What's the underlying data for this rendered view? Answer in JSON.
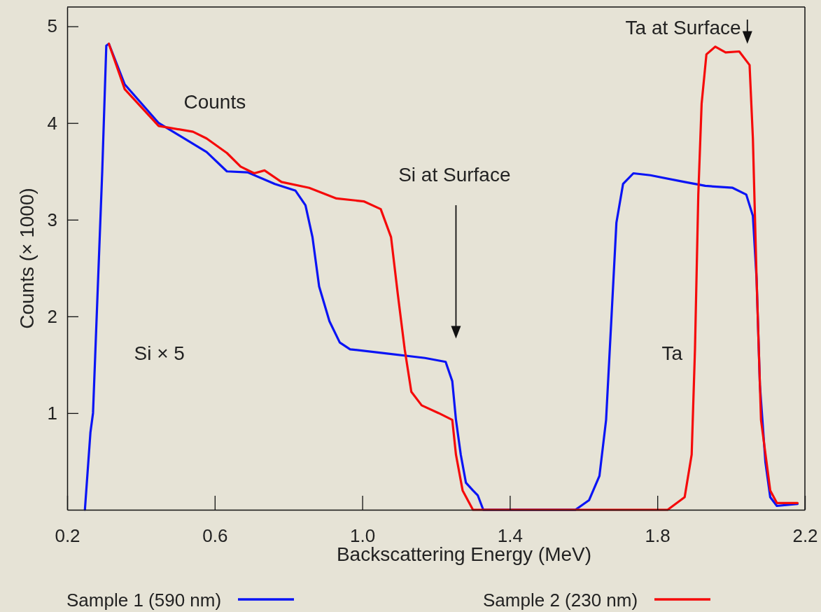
{
  "chart_data": {
    "type": "line",
    "xlabel": "Backscattering Energy (MeV)",
    "ylabel": "Counts (× 1000)",
    "xlim": [
      0.2,
      2.2
    ],
    "ylim": [
      0,
      5.2
    ],
    "xticks": [
      0.2,
      0.6,
      {
        "value": 1.0,
        "label": "1.0"
      },
      1.4,
      1.8,
      2.2
    ],
    "yticks": [
      1,
      2,
      3,
      4,
      5
    ],
    "grid": false,
    "legend": "bottom",
    "marker": "none",
    "line_style": "solid",
    "annotations": [
      "Counts",
      "Si × 5",
      "Ta",
      "Si at Surface",
      "Ta at Surface"
    ],
    "series": [
      {
        "name": "Sample 1 (590 nm)",
        "color": "#0a14f5",
        "x": [
          0.248,
          0.263,
          0.27,
          0.295,
          0.306,
          0.313,
          0.356,
          0.448,
          0.578,
          0.633,
          0.689,
          0.763,
          0.819,
          0.846,
          0.865,
          0.883,
          0.911,
          0.939,
          0.967,
          1.059,
          1.17,
          1.226,
          1.244,
          1.254,
          1.267,
          1.281,
          1.3,
          1.313,
          1.328,
          1.578,
          1.615,
          1.643,
          1.661,
          1.676,
          1.689,
          1.707,
          1.735,
          1.781,
          1.874,
          1.93,
          2.004,
          2.041,
          2.059,
          2.069,
          2.078,
          2.093,
          2.106,
          2.124,
          2.18
        ],
        "values": [
          0,
          0.8,
          1.0,
          3.5,
          4.8,
          4.82,
          4.4,
          4.0,
          3.7,
          3.5,
          3.49,
          3.37,
          3.3,
          3.15,
          2.82,
          2.31,
          1.95,
          1.73,
          1.66,
          1.62,
          1.57,
          1.53,
          1.33,
          0.93,
          0.57,
          0.28,
          0.2,
          0.15,
          0,
          0,
          0.1,
          0.35,
          0.93,
          2.02,
          2.97,
          3.37,
          3.48,
          3.46,
          3.39,
          3.35,
          3.33,
          3.26,
          3.04,
          2.39,
          1.29,
          0.49,
          0.13,
          0.04,
          0.06
        ]
      },
      {
        "name": "Sample 2 (230 nm)",
        "color": "#f50a0a",
        "x": [
          0.313,
          0.356,
          0.448,
          0.541,
          0.578,
          0.633,
          0.67,
          0.707,
          0.735,
          0.781,
          0.856,
          0.93,
          1.004,
          1.05,
          1.078,
          1.096,
          1.115,
          1.133,
          1.161,
          1.207,
          1.244,
          1.254,
          1.272,
          1.3,
          1.828,
          1.874,
          1.893,
          1.902,
          1.911,
          1.92,
          1.933,
          1.957,
          1.985,
          2.022,
          2.05,
          2.059,
          2.069,
          2.081,
          2.106,
          2.124,
          2.18
        ],
        "values": [
          4.82,
          4.35,
          3.97,
          3.91,
          3.84,
          3.69,
          3.55,
          3.48,
          3.51,
          3.39,
          3.33,
          3.22,
          3.19,
          3.11,
          2.82,
          2.24,
          1.66,
          1.22,
          1.08,
          1.0,
          0.93,
          0.57,
          0.2,
          0,
          0,
          0.13,
          0.57,
          1.66,
          3.26,
          4.2,
          4.71,
          4.79,
          4.73,
          4.74,
          4.6,
          3.84,
          2.39,
          0.93,
          0.2,
          0.07,
          0.07
        ]
      }
    ]
  }
}
